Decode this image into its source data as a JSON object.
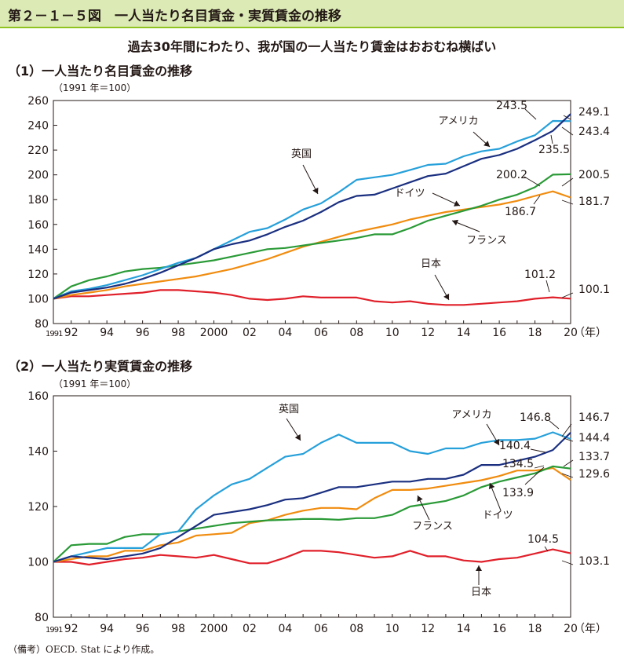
{
  "header": {
    "figure_title": "第２－１－５図　一人当たり名目賃金・実質賃金の推移",
    "subtitle": "過去30年間にわたり、我が国の一人当たり賃金はおおむね横ばい"
  },
  "note": "（備考）OECD. Stat により作成。",
  "colors": {
    "アメリカ": "#1a2f80",
    "英国": "#26a0da",
    "ドイツ": "#2a9a37",
    "フランス": "#f08c0f",
    "日本": "#e0202a",
    "frame": "#231815",
    "header_bg": "#dcebb6",
    "header_rule": "#8fc31f"
  },
  "panels": {
    "nominal": {
      "heading": "（1）一人当たり名目賃金の推移",
      "unit": "（1991 年＝100）"
    },
    "real": {
      "heading": "（2）一人当たり実質賃金の推移",
      "unit": "（1991 年＝100）"
    }
  },
  "chart_data": [
    {
      "type": "line",
      "title": "（1）一人当たり名目賃金の推移",
      "ylabel": "（1991 年＝100）",
      "x_unit": "（年）",
      "x": [
        1991,
        1992,
        1993,
        1994,
        1995,
        1996,
        1997,
        1998,
        1999,
        2000,
        2001,
        2002,
        2003,
        2004,
        2005,
        2006,
        2007,
        2008,
        2009,
        2010,
        2011,
        2012,
        2013,
        2014,
        2015,
        2016,
        2017,
        2018,
        2019,
        2020
      ],
      "x_ticks": [
        1991,
        1992,
        1994,
        1996,
        1998,
        2000,
        2002,
        2004,
        2006,
        2008,
        2010,
        2012,
        2014,
        2016,
        2018,
        2020
      ],
      "x_tick_labels": [
        "1991",
        "92",
        "94",
        "96",
        "98",
        "2000",
        "02",
        "04",
        "06",
        "08",
        "10",
        "12",
        "14",
        "16",
        "18",
        "20"
      ],
      "ylim": [
        80,
        260
      ],
      "y_ticks": [
        80,
        100,
        120,
        140,
        160,
        180,
        200,
        220,
        240,
        260
      ],
      "grid": false,
      "series": [
        {
          "name": "アメリカ",
          "values": [
            100,
            105,
            107,
            109,
            112,
            116,
            121,
            127,
            133,
            140,
            144,
            147,
            152,
            158,
            163,
            170,
            178,
            183,
            184,
            189,
            194,
            199,
            201,
            207,
            213,
            216,
            221,
            228,
            235.5,
            249.1
          ]
        },
        {
          "name": "英国",
          "values": [
            100,
            106,
            108,
            111,
            115,
            119,
            124,
            129,
            133,
            140,
            147,
            154,
            157,
            164,
            172,
            177,
            186,
            196,
            198,
            200,
            204,
            208,
            209,
            215,
            219,
            221,
            227,
            232,
            243.5,
            243.4
          ]
        },
        {
          "name": "ドイツ",
          "values": [
            100,
            110,
            115,
            118,
            122,
            124,
            125,
            127,
            129,
            131,
            134,
            137,
            140,
            141,
            143,
            145,
            147,
            149,
            152,
            152,
            157,
            163,
            167,
            171,
            175,
            180,
            184,
            190,
            200.2,
            200.5
          ]
        },
        {
          "name": "フランス",
          "values": [
            100,
            103,
            105,
            107,
            110,
            112,
            114,
            116,
            118,
            121,
            124,
            128,
            132,
            137,
            142,
            146,
            150,
            154,
            157,
            160,
            164,
            167,
            170,
            172,
            174,
            176,
            179,
            183,
            186.7,
            181.7
          ]
        },
        {
          "name": "日本",
          "values": [
            100,
            102,
            102,
            103,
            104,
            105,
            107,
            107,
            106,
            105,
            103,
            100,
            99,
            100,
            102,
            101,
            101,
            101,
            98,
            97,
            98,
            96,
            95,
            95,
            96,
            97,
            98,
            100,
            101.2,
            100.1
          ]
        }
      ],
      "labels": [
        {
          "text": "249.1"
        },
        {
          "text": "243.5"
        },
        {
          "text": "243.4"
        },
        {
          "text": "235.5"
        },
        {
          "text": "200.2"
        },
        {
          "text": "200.5"
        },
        {
          "text": "186.7"
        },
        {
          "text": "181.7"
        },
        {
          "text": "101.2"
        },
        {
          "text": "100.1"
        },
        {
          "text": "アメリカ"
        },
        {
          "text": "英国"
        },
        {
          "text": "ドイツ"
        },
        {
          "text": "フランス"
        },
        {
          "text": "日本"
        }
      ]
    },
    {
      "type": "line",
      "title": "（2）一人当たり実質賃金の推移",
      "ylabel": "（1991 年＝100）",
      "x_unit": "（年）",
      "x": [
        1991,
        1992,
        1993,
        1994,
        1995,
        1996,
        1997,
        1998,
        1999,
        2000,
        2001,
        2002,
        2003,
        2004,
        2005,
        2006,
        2007,
        2008,
        2009,
        2010,
        2011,
        2012,
        2013,
        2014,
        2015,
        2016,
        2017,
        2018,
        2019,
        2020
      ],
      "x_ticks": [
        1991,
        1992,
        1994,
        1996,
        1998,
        2000,
        2002,
        2004,
        2006,
        2008,
        2010,
        2012,
        2014,
        2016,
        2018,
        2020
      ],
      "x_tick_labels": [
        "1991",
        "92",
        "94",
        "96",
        "98",
        "2000",
        "02",
        "04",
        "06",
        "08",
        "10",
        "12",
        "14",
        "16",
        "18",
        "20"
      ],
      "ylim": [
        80,
        160
      ],
      "y_ticks": [
        80,
        100,
        120,
        140,
        160
      ],
      "grid": false,
      "series": [
        {
          "name": "アメリカ",
          "values": [
            100,
            102,
            101.5,
            101,
            102,
            103,
            105,
            109,
            113,
            117,
            118,
            119,
            120.5,
            122.5,
            123,
            125,
            127,
            127,
            128,
            129,
            129,
            130,
            130,
            131.5,
            135,
            135,
            136.5,
            138,
            140.4,
            146.7
          ]
        },
        {
          "name": "英国",
          "values": [
            100,
            102,
            103.5,
            105,
            105,
            105,
            110,
            111,
            119,
            124,
            128,
            130,
            134,
            138,
            139,
            143,
            146,
            143,
            143,
            143,
            140,
            139,
            141,
            141,
            143,
            144,
            144,
            144.5,
            146.8,
            144.4
          ]
        },
        {
          "name": "ドイツ",
          "values": [
            100,
            106,
            106.5,
            106.5,
            109,
            110,
            110,
            111,
            112,
            113,
            114,
            114.5,
            115,
            115.2,
            115.5,
            115.5,
            115.2,
            115.8,
            115.8,
            117,
            120,
            121,
            122,
            124,
            127,
            129,
            130.5,
            132,
            134.5,
            133.7
          ]
        },
        {
          "name": "フランス",
          "values": [
            100,
            101,
            102,
            102,
            104,
            104,
            106,
            107,
            109.5,
            110,
            110.5,
            114,
            115,
            117,
            118.5,
            119.5,
            119.5,
            119,
            123,
            126,
            126,
            126.5,
            127.5,
            128.5,
            129.5,
            131,
            133,
            133,
            133.9,
            129.6
          ]
        },
        {
          "name": "日本",
          "values": [
            100,
            100,
            99,
            100,
            101,
            101.5,
            102.5,
            102,
            101.5,
            102.5,
            101,
            99.5,
            99.5,
            101.5,
            104,
            104,
            103.5,
            102.5,
            101.5,
            102,
            104,
            102,
            102,
            100.5,
            100,
            101,
            101.5,
            103,
            104.5,
            103.1
          ]
        }
      ],
      "labels": [
        {
          "text": "146.8"
        },
        {
          "text": "146.7"
        },
        {
          "text": "144.4"
        },
        {
          "text": "140.4"
        },
        {
          "text": "134.5"
        },
        {
          "text": "133.7"
        },
        {
          "text": "133.9"
        },
        {
          "text": "129.6"
        },
        {
          "text": "104.5"
        },
        {
          "text": "103.1"
        },
        {
          "text": "アメリカ"
        },
        {
          "text": "英国"
        },
        {
          "text": "ドイツ"
        },
        {
          "text": "フランス"
        },
        {
          "text": "日本"
        }
      ]
    }
  ]
}
